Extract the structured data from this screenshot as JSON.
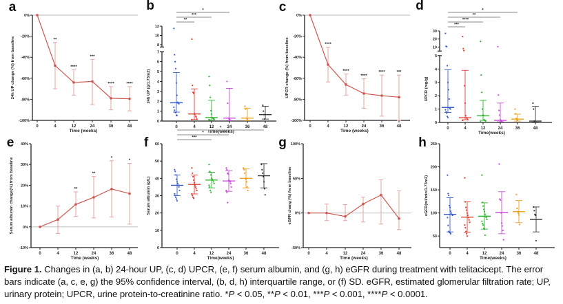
{
  "figure_label": "Figure 1.",
  "caption": {
    "body": " Changes in (a, b) 24-hour UP, (c, d) UPCR, (e, f) serum albumin, and (g, h) eGFR during treatment with telitacicept. The error bars indicate (a, c, e, g) the 95% confidence interval, (b, d, h) interquartile range, or (f) SD. eGFR, estimated glomerular filtration rate; UP, urinary protein; UPCR, urine protein-to-creatinine ratio. ",
    "sig": [
      {
        "stars": "*",
        "p": "P",
        "rel": " < 0.05, "
      },
      {
        "stars": "**",
        "p": "P",
        "rel": " < 0.01, "
      },
      {
        "stars": "***",
        "p": "P",
        "rel": " < 0.001, "
      },
      {
        "stars": "****",
        "p": "P",
        "rel": " < 0.0001."
      }
    ]
  },
  "colors": {
    "line": "#d0574f",
    "errorbar": "#e6a39e",
    "ref_line": "#c8c8c8",
    "axis": "#222222",
    "groups": [
      "#3a5fcd",
      "#e03c31",
      "#2db52d",
      "#c94fd6",
      "#f0a01e",
      "#333333"
    ]
  },
  "chart_data": [
    {
      "panel": "a",
      "type": "line",
      "ylabel": "24h UP change (%) from baseline",
      "xlabel": "Time (weeks)",
      "categories": [
        "0",
        "4",
        "12",
        "24",
        "36",
        "48"
      ],
      "ylim": [
        -100,
        0
      ],
      "yticks": [
        0,
        -20,
        -40,
        -60,
        -80,
        -100
      ],
      "ytick_labels": [
        "0%",
        "-20%",
        "-40%",
        "-60%",
        "-80%",
        "-100%"
      ],
      "reference_line": 0,
      "values": [
        0,
        -48,
        -64,
        -63,
        -79,
        -79.5
      ],
      "ci_low": [
        0,
        -70,
        -76,
        -85,
        -90,
        -91
      ],
      "ci_high": [
        0,
        -26,
        -52,
        -42,
        -68,
        -68
      ],
      "significance": [
        "",
        "**",
        "****",
        "***",
        "****",
        "****"
      ],
      "error_bars": "95% CI"
    },
    {
      "panel": "b",
      "type": "scatter",
      "ylabel": "24h UP (g/1.73m2)",
      "xlabel": "Time(weeks)",
      "categories": [
        "0",
        "4",
        "12",
        "24",
        "36",
        "48"
      ],
      "axis_break": {
        "lower": [
          0,
          7
        ],
        "upper": [
          7.5,
          12
        ]
      },
      "yticks_lower": [
        0,
        1,
        2,
        3,
        4,
        5,
        6,
        7
      ],
      "yticks_upper": [
        8,
        10,
        12
      ],
      "medians": [
        1.85,
        0.72,
        0.35,
        0.3,
        0.3,
        0.65
      ],
      "q1": [
        0.9,
        0.15,
        0.1,
        0.05,
        0.05,
        0.2
      ],
      "q3": [
        4.9,
        3.25,
        2.1,
        3.3,
        1.3,
        1.5
      ],
      "points": [
        [
          11.5,
          6.7,
          6.0,
          5.3,
          3.85,
          2.6,
          1.9,
          1.8,
          1.75,
          1.4,
          1.1,
          0.9,
          0.85,
          0.6,
          0.55
        ],
        [
          9.2,
          3.6,
          2.9,
          2.8,
          0.75,
          0.7,
          0.5,
          0.4,
          0.2,
          0.15
        ],
        [
          4.5,
          3.6,
          2.4,
          1.05,
          0.7,
          0.35,
          0.3,
          0.25,
          0.2,
          0.15,
          0.1
        ],
        [
          4.0,
          1.8,
          0.3,
          0.25,
          0.2,
          0.1,
          0.05
        ],
        [
          1.5,
          1.2,
          0.3,
          0.25,
          0.2
        ],
        [
          1.6,
          1.0,
          0.65,
          0.2
        ]
      ],
      "comparisons": [
        {
          "from": "0",
          "to": "4",
          "label": "**"
        },
        {
          "from": "0",
          "to": "12",
          "label": "***"
        },
        {
          "from": "0",
          "to": "24",
          "label": "*"
        }
      ],
      "error_bars": "median with IQR"
    },
    {
      "panel": "c",
      "type": "line",
      "ylabel": "UPCR change (%) from baseline",
      "xlabel": "Time (weeks)",
      "categories": [
        "0",
        "4",
        "12",
        "24",
        "36",
        "48"
      ],
      "ylim": [
        -100,
        0
      ],
      "yticks": [
        0,
        -20,
        -40,
        -60,
        -80,
        -100
      ],
      "ytick_labels": [
        "0%",
        "-20%",
        "-40%",
        "-60%",
        "-80%",
        "-100%"
      ],
      "reference_line": 0,
      "values": [
        0,
        -47,
        -66,
        -74.5,
        -76.5,
        -78
      ],
      "ci_low": [
        0,
        -63.5,
        -76,
        -88.5,
        -96,
        -100
      ],
      "ci_high": [
        0,
        -30.5,
        -56,
        -60.5,
        -57,
        -57
      ],
      "significance": [
        "",
        "****",
        "****",
        "****",
        "****",
        "***"
      ],
      "error_bars": "95% CI"
    },
    {
      "panel": "d",
      "type": "scatter",
      "ylabel": "UPCR (mg/g)",
      "xlabel": "Time(weeks)",
      "categories": [
        "0",
        "4",
        "12",
        "24",
        "36",
        "48"
      ],
      "axis_break": {
        "lower": [
          0,
          5
        ],
        "upper": [
          5,
          30
        ]
      },
      "yticks_lower": [
        0,
        1,
        2,
        3,
        4,
        5
      ],
      "yticks_upper": [
        10,
        20,
        30
      ],
      "medians": [
        1.12,
        0.35,
        0.5,
        0.15,
        0.25,
        0.1
      ],
      "q1": [
        0.75,
        0.2,
        0.15,
        0.05,
        0.1,
        0.02
      ],
      "q3": [
        3.95,
        3.9,
        1.65,
        1.45,
        0.62,
        1.2
      ],
      "points": [
        [
          27,
          11,
          10.5,
          4.25,
          3.0,
          2.45,
          1.75,
          1.05,
          1.0,
          0.95,
          0.8,
          0.7,
          0.45,
          0.35
        ],
        [
          23,
          8,
          5.5,
          2.75,
          1.45,
          0.5,
          0.35,
          0.3,
          0.2,
          0.15
        ],
        [
          17,
          3.55,
          2.25,
          1.0,
          0.55,
          0.5,
          0.2,
          0.15,
          0.1,
          0.05
        ],
        [
          10.5,
          2.05,
          0.9,
          0.55,
          0.2,
          0.15,
          0.1
        ],
        [
          1.0,
          0.65,
          0.3,
          0.2,
          0.15
        ],
        [
          1.45,
          1.0,
          0.1,
          0.05
        ]
      ],
      "comparisons": [
        {
          "from": "0",
          "to": "4",
          "label": "***"
        },
        {
          "from": "0",
          "to": "12",
          "label": "****"
        },
        {
          "from": "0",
          "to": "24",
          "label": "**"
        },
        {
          "from": "0",
          "to": "36",
          "label": "*"
        }
      ],
      "error_bars": "median with IQR"
    },
    {
      "panel": "e",
      "type": "line",
      "ylabel": "Serum albumin change(%) from baseline",
      "xlabel": "Time (weeks)",
      "categories": [
        "0",
        "4",
        "12",
        "24",
        "36",
        "48"
      ],
      "ylim": [
        -10,
        40
      ],
      "yticks": [
        40,
        30,
        20,
        10,
        0,
        -10
      ],
      "ytick_labels": [
        "40%",
        "30%",
        "20%",
        "10%",
        "0%",
        "-10%"
      ],
      "reference_line": 0,
      "values": [
        0,
        3.5,
        10.8,
        14.2,
        18.2,
        16
      ],
      "ci_low": [
        0,
        -3.2,
        5,
        4.3,
        4.7,
        1.3
      ],
      "ci_high": [
        0,
        10,
        16.8,
        24.2,
        31.8,
        30.5
      ],
      "significance": [
        "",
        "",
        "**",
        "**",
        "*",
        "*"
      ],
      "error_bars": "95% CI"
    },
    {
      "panel": "f",
      "type": "scatter",
      "ylabel": "Serum albumin (g/L)",
      "xlabel": "Time(weeks)",
      "categories": [
        "0",
        "4",
        "12",
        "24",
        "36",
        "48"
      ],
      "ylim": [
        0,
        60
      ],
      "yticks": [
        0,
        10,
        20,
        30,
        40,
        50,
        60
      ],
      "means": [
        36,
        36.5,
        39,
        38.5,
        40,
        41.5
      ],
      "sd_low": [
        30,
        31,
        34.5,
        32.5,
        34.5,
        34.5
      ],
      "sd_high": [
        42,
        42,
        43.5,
        44.5,
        45.5,
        48.5
      ],
      "points": [
        [
          45,
          44,
          42,
          39.5,
          38,
          37,
          36,
          35,
          33,
          31,
          30,
          29,
          28,
          27
        ],
        [
          46,
          43,
          41,
          39,
          37.5,
          36,
          35,
          34,
          33,
          31,
          30,
          29,
          28.5
        ],
        [
          48,
          44,
          43.5,
          42,
          40,
          39.5,
          39,
          38,
          37,
          36,
          35,
          33,
          32
        ],
        [
          46,
          45,
          43,
          42.5,
          39,
          38.5,
          38,
          37,
          35,
          33,
          32,
          26
        ],
        [
          46,
          45,
          43,
          40,
          39.5,
          38,
          35,
          33
        ],
        [
          48,
          45,
          43,
          41,
          38,
          34,
          30.5
        ]
      ],
      "comparisons": [
        {
          "from": "0",
          "to": "12",
          "label": "***"
        },
        {
          "from": "0",
          "to": "24",
          "label": "*"
        },
        {
          "from": "0",
          "to": "48",
          "label": "*"
        }
      ],
      "error_bars": "mean with SD"
    },
    {
      "panel": "g",
      "type": "line",
      "ylabel": "eGFR chang (%) from baseline",
      "xlabel": "Time (weeks)",
      "categories": [
        "0",
        "4",
        "12",
        "24",
        "36",
        "48"
      ],
      "ylim": [
        -50,
        100
      ],
      "yticks": [
        100,
        50,
        0,
        -50
      ],
      "ytick_labels": [
        "100%",
        "50%",
        "0%",
        "-50%"
      ],
      "reference_line": 0,
      "values": [
        0,
        0,
        -5,
        13,
        26,
        -8
      ],
      "ci_low": [
        0,
        -11,
        -11,
        -13,
        -16,
        -24
      ],
      "ci_high": [
        0,
        13,
        12,
        23,
        48,
        32
      ],
      "significance": [
        "",
        "",
        "",
        "",
        "",
        ""
      ],
      "error_bars": "95% CI"
    },
    {
      "panel": "h",
      "type": "scatter",
      "ylabel": "eGFR(ml/min/1.73m2)",
      "xlabel": "Time(weeks)",
      "categories": [
        "0",
        "4",
        "12",
        "24",
        "36",
        "48"
      ],
      "ylim": [
        25,
        250
      ],
      "yticks": [
        50,
        100,
        150,
        200,
        250
      ],
      "medians": [
        97,
        91,
        93,
        101,
        103,
        86
      ],
      "q1": [
        59,
        58,
        65,
        55,
        79,
        59
      ],
      "q3": [
        133,
        124,
        122,
        146,
        127,
        113
      ],
      "points": [
        [
          182,
          142,
          138,
          116,
          112,
          104,
          100,
          97,
          95,
          90,
          73,
          60,
          58,
          57,
          55
        ],
        [
          176,
          124,
          112,
          106,
          100,
          95,
          90,
          85,
          80,
          74,
          68,
          60,
          55,
          50
        ],
        [
          182,
          123,
          115,
          108,
          103,
          97,
          93,
          90,
          86,
          82,
          77,
          74,
          67,
          65,
          52
        ],
        [
          206,
          130,
          128,
          100,
          78,
          72,
          62,
          42
        ],
        [
          140,
          110,
          103,
          100,
          96,
          75
        ],
        [
          113,
          105,
          97,
          95,
          40
        ]
      ],
      "comparisons": [],
      "error_bars": "median with IQR"
    }
  ]
}
